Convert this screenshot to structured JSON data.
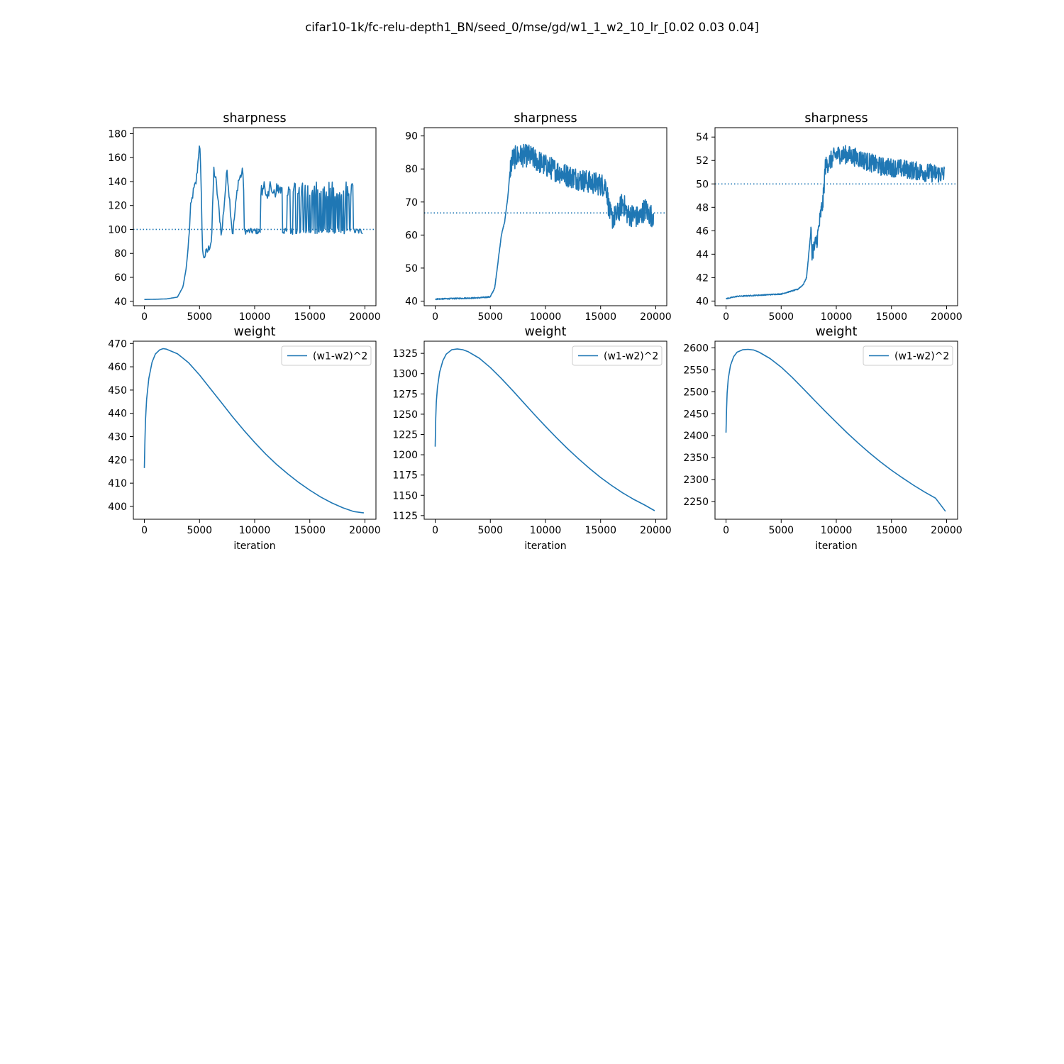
{
  "figure": {
    "suptitle": "cifar10-1k/fc-relu-depth1_BN/seed_0/mse/gd/w1_1_w2_10_lr_[0.02 0.03 0.04]"
  },
  "colors": {
    "series": "#1f77b4",
    "axes": "#000000",
    "background": "#ffffff"
  },
  "chart_data": [
    {
      "type": "line",
      "panel": "sharpness, lr 0.02",
      "title": "sharpness",
      "xlabel": "",
      "ylabel": "",
      "xlim": [
        -1000,
        21000
      ],
      "ylim": [
        36.3,
        185.0
      ],
      "xticks": [
        0,
        5000,
        10000,
        15000,
        20000
      ],
      "yticks": [
        40,
        60,
        80,
        100,
        120,
        140,
        160,
        180
      ],
      "hline": {
        "y": 100,
        "style": "dotted"
      },
      "legend": null,
      "shape": "spiky",
      "oscillation": {
        "from": 9000,
        "lo": 96,
        "hi": 140
      },
      "series": [
        {
          "x": [
            0,
            1000,
            2000,
            3000,
            3500,
            3800,
            4000,
            4200,
            4400,
            4700,
            4900,
            5000,
            5100,
            5300,
            5800,
            6100,
            6300,
            6500,
            7000,
            7500,
            8000,
            8500,
            9000,
            10000,
            11000,
            12000,
            13000,
            14000,
            15000,
            16000,
            17000,
            18000,
            19000,
            19800
          ],
          "y": [
            41.5,
            41.7,
            42.0,
            43.5,
            52,
            68,
            88,
            118,
            130,
            140,
            160,
            175,
            150,
            76,
            83,
            92,
            150,
            140,
            95,
            150,
            95,
            140,
            150,
            100,
            130,
            100,
            135,
            100,
            130,
            102,
            128,
            102,
            128,
            103
          ]
        }
      ]
    },
    {
      "type": "line",
      "panel": "sharpness, lr 0.03",
      "title": "sharpness",
      "xlabel": "",
      "ylabel": "",
      "xlim": [
        -1000,
        21000
      ],
      "ylim": [
        38.6,
        92.5
      ],
      "xticks": [
        0,
        5000,
        10000,
        15000,
        20000
      ],
      "yticks": [
        40,
        50,
        60,
        70,
        80,
        90
      ],
      "hline": {
        "y": 66.7,
        "style": "dotted"
      },
      "legend": null,
      "shape": "noisy",
      "noise_amp": 3.5,
      "series": [
        {
          "x": [
            0,
            2000,
            4000,
            5000,
            5400,
            5700,
            6000,
            6300,
            6600,
            6800,
            7000,
            7500,
            8500,
            10000,
            12000,
            14000,
            15500,
            15800,
            16000,
            16500,
            17000,
            17500,
            18000,
            18500,
            19000,
            19500,
            19800
          ],
          "y": [
            40.6,
            40.8,
            41.0,
            41.3,
            44,
            52,
            60,
            64,
            72,
            80,
            83,
            84,
            84,
            81,
            78,
            76,
            75,
            67,
            65,
            66,
            70,
            66,
            66,
            65,
            68,
            66,
            66
          ]
        }
      ]
    },
    {
      "type": "line",
      "panel": "sharpness, lr 0.04",
      "title": "sharpness",
      "xlabel": "",
      "ylabel": "",
      "xlim": [
        -1000,
        21000
      ],
      "ylim": [
        39.6,
        54.8
      ],
      "xticks": [
        0,
        5000,
        10000,
        15000,
        20000
      ],
      "yticks": [
        40,
        42,
        44,
        46,
        48,
        50,
        52,
        54
      ],
      "hline": {
        "y": 50,
        "style": "dotted"
      },
      "legend": null,
      "shape": "noisy",
      "noise_amp": 0.8,
      "series": [
        {
          "x": [
            0,
            1000,
            3000,
            5000,
            6500,
            7000,
            7300,
            7500,
            7700,
            7800,
            8000,
            8300,
            8600,
            8800,
            9000,
            9500,
            10000,
            11000,
            12000,
            14000,
            16000,
            18000,
            19800
          ],
          "y": [
            40.2,
            40.4,
            40.5,
            40.6,
            41.0,
            41.4,
            42.0,
            44.0,
            46.0,
            44.3,
            44.5,
            45.5,
            47.5,
            48.5,
            51.5,
            52.0,
            52.5,
            52.5,
            52.2,
            51.5,
            51.3,
            51.0,
            50.8
          ]
        }
      ]
    },
    {
      "type": "line",
      "panel": "weight, lr 0.02",
      "title": "weight",
      "xlabel": "iteration",
      "ylabel": "",
      "xlim": [
        -1000,
        21000
      ],
      "ylim": [
        394.5,
        471.0
      ],
      "xticks": [
        0,
        5000,
        10000,
        15000,
        20000
      ],
      "yticks": [
        400,
        410,
        420,
        430,
        440,
        450,
        460,
        470
      ],
      "hline": null,
      "legend": {
        "loc": "upper right"
      },
      "shape": "smooth",
      "series": [
        {
          "name": "(w1-w2)^2",
          "x": [
            0,
            50,
            100,
            200,
            400,
            700,
            1000,
            1400,
            1700,
            2000,
            3000,
            4000,
            5000,
            6000,
            7000,
            8000,
            9000,
            10000,
            11000,
            12000,
            13000,
            14000,
            15000,
            16000,
            17000,
            18000,
            19000,
            19900
          ],
          "y": [
            416.5,
            428,
            437,
            446,
            455,
            462,
            465.5,
            467.3,
            467.8,
            467.6,
            465.6,
            461.8,
            456.5,
            450.5,
            444.5,
            438.5,
            432.8,
            427.5,
            422.5,
            418.0,
            414.0,
            410.3,
            407.0,
            404.0,
            401.5,
            399.4,
            397.8,
            397.2
          ]
        }
      ]
    },
    {
      "type": "line",
      "panel": "weight, lr 0.03",
      "title": "weight",
      "xlabel": "iteration",
      "ylabel": "",
      "xlim": [
        -1000,
        21000
      ],
      "ylim": [
        1120.5,
        1340.0
      ],
      "xticks": [
        0,
        5000,
        10000,
        15000,
        20000
      ],
      "yticks": [
        1125,
        1150,
        1175,
        1200,
        1225,
        1250,
        1275,
        1300,
        1325
      ],
      "hline": null,
      "legend": {
        "loc": "upper right"
      },
      "shape": "smooth",
      "series": [
        {
          "name": "(w1-w2)^2",
          "x": [
            0,
            50,
            100,
            200,
            400,
            700,
            1000,
            1500,
            2000,
            2500,
            3000,
            4000,
            5000,
            6000,
            7000,
            8000,
            9000,
            10000,
            11000,
            12000,
            13000,
            14000,
            15000,
            16000,
            17000,
            18000,
            19000,
            19900
          ],
          "y": [
            1210,
            1245,
            1265,
            1283,
            1302,
            1316,
            1324,
            1329.5,
            1330.5,
            1329.5,
            1327,
            1319,
            1307.5,
            1294,
            1279.5,
            1264.5,
            1249.5,
            1235,
            1221,
            1207.5,
            1195,
            1183,
            1172,
            1162,
            1153,
            1145,
            1138,
            1131
          ]
        }
      ]
    },
    {
      "type": "line",
      "panel": "weight, lr 0.04",
      "title": "weight",
      "xlabel": "iteration",
      "ylabel": "",
      "xlim": [
        -1000,
        21000
      ],
      "ylim": [
        2210.0,
        2615.0
      ],
      "xticks": [
        0,
        5000,
        10000,
        15000,
        20000
      ],
      "yticks": [
        2250,
        2300,
        2350,
        2400,
        2450,
        2500,
        2550,
        2600
      ],
      "hline": null,
      "legend": {
        "loc": "upper right"
      },
      "shape": "smooth",
      "series": [
        {
          "name": "(w1-w2)^2",
          "x": [
            0,
            50,
            100,
            200,
            400,
            700,
            1000,
            1500,
            2000,
            2500,
            3000,
            4000,
            5000,
            6000,
            7000,
            8000,
            9000,
            10000,
            11000,
            12000,
            13000,
            14000,
            15000,
            16000,
            17000,
            18000,
            19000,
            19900
          ],
          "y": [
            2407,
            2460,
            2497,
            2530,
            2560,
            2580,
            2590,
            2595.5,
            2596.5,
            2595,
            2590,
            2575.5,
            2556,
            2532.5,
            2507,
            2481,
            2455.5,
            2430.5,
            2406,
            2383,
            2361,
            2340.5,
            2321.5,
            2304,
            2287.5,
            2272,
            2258,
            2228
          ]
        }
      ]
    }
  ]
}
